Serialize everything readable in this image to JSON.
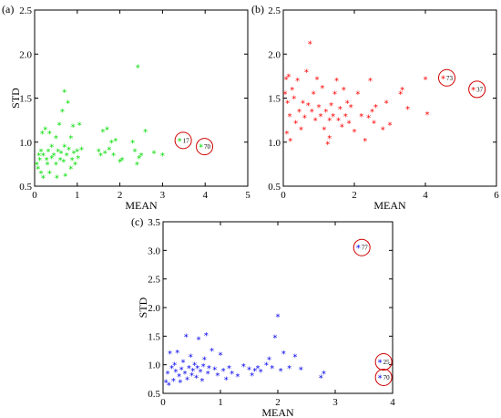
{
  "chart_data": [
    {
      "type": "scatter",
      "panel_label": "(a)",
      "xlabel": "MEAN",
      "ylabel": "STD",
      "xlim": [
        0,
        5
      ],
      "ylim": [
        0.5,
        2.5
      ],
      "xticks": [
        0,
        1,
        2,
        3,
        4,
        5
      ],
      "yticks": [
        0.5,
        1.0,
        1.5,
        2.0,
        2.5
      ],
      "ytick_labels": [
        "0.5",
        "1.0",
        "1.5",
        "2.0",
        "2.5"
      ],
      "color": "#00dd00",
      "marker": "*",
      "points": [
        [
          0.05,
          0.75
        ],
        [
          0.08,
          0.7
        ],
        [
          0.1,
          0.85
        ],
        [
          0.12,
          0.8
        ],
        [
          0.15,
          0.65
        ],
        [
          0.15,
          0.9
        ],
        [
          0.18,
          1.1
        ],
        [
          0.2,
          0.85
        ],
        [
          0.2,
          0.6
        ],
        [
          0.25,
          1.15
        ],
        [
          0.28,
          0.8
        ],
        [
          0.3,
          0.75
        ],
        [
          0.32,
          0.9
        ],
        [
          0.35,
          1.1
        ],
        [
          0.35,
          0.65
        ],
        [
          0.4,
          0.82
        ],
        [
          0.4,
          0.95
        ],
        [
          0.45,
          0.85
        ],
        [
          0.5,
          0.75
        ],
        [
          0.5,
          1.05
        ],
        [
          0.52,
          0.6
        ],
        [
          0.55,
          0.9
        ],
        [
          0.58,
          1.2
        ],
        [
          0.6,
          0.8
        ],
        [
          0.62,
          0.88
        ],
        [
          0.65,
          1.35
        ],
        [
          0.68,
          0.78
        ],
        [
          0.7,
          0.95
        ],
        [
          0.7,
          1.57
        ],
        [
          0.72,
          0.62
        ],
        [
          0.75,
          0.85
        ],
        [
          0.78,
          1.45
        ],
        [
          0.8,
          0.92
        ],
        [
          0.85,
          1.05
        ],
        [
          0.85,
          0.7
        ],
        [
          0.88,
          0.8
        ],
        [
          0.9,
          1.18
        ],
        [
          0.92,
          0.88
        ],
        [
          0.95,
          0.75
        ],
        [
          1.0,
          0.9
        ],
        [
          1.02,
          0.82
        ],
        [
          1.05,
          1.2
        ],
        [
          1.1,
          0.92
        ],
        [
          1.5,
          0.9
        ],
        [
          1.55,
          0.85
        ],
        [
          1.6,
          1.12
        ],
        [
          1.65,
          0.88
        ],
        [
          1.7,
          1.15
        ],
        [
          1.75,
          0.92
        ],
        [
          1.8,
          1.0
        ],
        [
          1.85,
          0.85
        ],
        [
          1.9,
          1.02
        ],
        [
          2.0,
          0.78
        ],
        [
          2.05,
          0.8
        ],
        [
          2.3,
          1.0
        ],
        [
          2.35,
          0.9
        ],
        [
          2.4,
          0.75
        ],
        [
          2.42,
          1.85
        ],
        [
          2.45,
          0.82
        ],
        [
          2.5,
          0.85
        ],
        [
          2.6,
          1.12
        ],
        [
          2.8,
          0.88
        ],
        [
          3.0,
          0.85
        ],
        [
          3.4,
          1.02
        ],
        [
          3.9,
          0.95
        ]
      ],
      "annotations": [
        {
          "label": "17",
          "x": 3.4,
          "y": 1.02
        },
        {
          "label": "70",
          "x": 3.9,
          "y": 0.95
        }
      ]
    },
    {
      "type": "scatter",
      "panel_label": "(b)",
      "xlabel": "MEAN",
      "ylabel": "",
      "xlim": [
        0,
        6
      ],
      "ylim": [
        0.5,
        2.5
      ],
      "xticks": [
        0,
        2,
        4,
        6
      ],
      "yticks": [
        0.5,
        1.0,
        1.5,
        2.0,
        2.5
      ],
      "ytick_labels": [
        "0.5",
        "1.0",
        "1.5",
        "2.0",
        "2.5"
      ],
      "color": "#ff0000",
      "marker": "*",
      "points": [
        [
          0.05,
          1.55
        ],
        [
          0.08,
          1.72
        ],
        [
          0.1,
          1.1
        ],
        [
          0.12,
          1.45
        ],
        [
          0.15,
          1.75
        ],
        [
          0.18,
          1.3
        ],
        [
          0.2,
          1.02
        ],
        [
          0.25,
          1.6
        ],
        [
          0.3,
          1.5
        ],
        [
          0.35,
          1.22
        ],
        [
          0.4,
          1.7
        ],
        [
          0.45,
          1.35
        ],
        [
          0.5,
          1.15
        ],
        [
          0.55,
          1.45
        ],
        [
          0.6,
          1.28
        ],
        [
          0.65,
          1.8
        ],
        [
          0.7,
          1.42
        ],
        [
          0.75,
          2.12
        ],
        [
          0.8,
          1.35
        ],
        [
          0.85,
          1.55
        ],
        [
          0.9,
          1.25
        ],
        [
          0.95,
          1.72
        ],
        [
          1.0,
          1.4
        ],
        [
          1.05,
          1.3
        ],
        [
          1.1,
          1.62
        ],
        [
          1.15,
          1.15
        ],
        [
          1.2,
          1.35
        ],
        [
          1.25,
          0.98
        ],
        [
          1.3,
          1.25
        ],
        [
          1.3,
          1.05
        ],
        [
          1.35,
          1.42
        ],
        [
          1.4,
          1.3
        ],
        [
          1.45,
          1.55
        ],
        [
          1.5,
          1.7
        ],
        [
          1.55,
          1.25
        ],
        [
          1.6,
          1.38
        ],
        [
          1.65,
          1.18
        ],
        [
          1.7,
          1.6
        ],
        [
          1.75,
          1.3
        ],
        [
          1.8,
          1.45
        ],
        [
          1.85,
          1.22
        ],
        [
          1.9,
          1.4
        ],
        [
          2.0,
          1.12
        ],
        [
          2.1,
          1.55
        ],
        [
          2.2,
          1.3
        ],
        [
          2.3,
          1.02
        ],
        [
          2.4,
          1.28
        ],
        [
          2.45,
          1.7
        ],
        [
          2.5,
          1.35
        ],
        [
          2.55,
          1.22
        ],
        [
          2.6,
          1.4
        ],
        [
          2.8,
          1.15
        ],
        [
          2.9,
          1.45
        ],
        [
          3.0,
          1.2
        ],
        [
          3.3,
          1.55
        ],
        [
          3.35,
          1.6
        ],
        [
          3.5,
          1.38
        ],
        [
          4.0,
          1.72
        ],
        [
          4.05,
          1.32
        ],
        [
          4.5,
          1.73
        ],
        [
          5.35,
          1.6
        ]
      ],
      "annotations": [
        {
          "label": "73",
          "x": 4.5,
          "y": 1.73
        },
        {
          "label": "37",
          "x": 5.35,
          "y": 1.6
        }
      ]
    },
    {
      "type": "scatter",
      "panel_label": "(c)",
      "xlabel": "MEAN",
      "ylabel": "STD",
      "xlim": [
        0,
        4
      ],
      "ylim": [
        0.5,
        3.5
      ],
      "xticks": [
        0,
        1,
        2,
        3,
        4
      ],
      "yticks": [
        0.5,
        1.0,
        1.5,
        2.0,
        2.5,
        3.0,
        3.5
      ],
      "ytick_labels": [
        "0.5",
        "1.0",
        "1.5",
        "2.0",
        "2.5",
        "3.0",
        "3.5"
      ],
      "color": "#0000ee",
      "marker": "*",
      "points": [
        [
          0.05,
          0.7
        ],
        [
          0.08,
          0.85
        ],
        [
          0.1,
          0.65
        ],
        [
          0.12,
          1.2
        ],
        [
          0.15,
          0.95
        ],
        [
          0.18,
          0.72
        ],
        [
          0.2,
          1.0
        ],
        [
          0.22,
          0.88
        ],
        [
          0.25,
          1.22
        ],
        [
          0.28,
          0.8
        ],
        [
          0.3,
          0.7
        ],
        [
          0.32,
          0.92
        ],
        [
          0.35,
          1.05
        ],
        [
          0.38,
          0.85
        ],
        [
          0.4,
          1.5
        ],
        [
          0.42,
          0.75
        ],
        [
          0.45,
          0.95
        ],
        [
          0.48,
          1.15
        ],
        [
          0.5,
          0.82
        ],
        [
          0.52,
          0.9
        ],
        [
          0.55,
          1.0
        ],
        [
          0.58,
          0.78
        ],
        [
          0.6,
          0.95
        ],
        [
          0.62,
          1.45
        ],
        [
          0.65,
          0.88
        ],
        [
          0.68,
          0.72
        ],
        [
          0.7,
          0.98
        ],
        [
          0.72,
          1.1
        ],
        [
          0.75,
          1.52
        ],
        [
          0.78,
          0.85
        ],
        [
          0.8,
          0.95
        ],
        [
          0.85,
          1.25
        ],
        [
          0.9,
          0.92
        ],
        [
          0.95,
          0.82
        ],
        [
          1.0,
          1.18
        ],
        [
          1.05,
          0.9
        ],
        [
          1.1,
          0.75
        ],
        [
          1.15,
          0.95
        ],
        [
          1.2,
          0.85
        ],
        [
          1.3,
          0.8
        ],
        [
          1.4,
          0.98
        ],
        [
          1.5,
          0.92
        ],
        [
          1.55,
          0.82
        ],
        [
          1.6,
          0.9
        ],
        [
          1.65,
          0.95
        ],
        [
          1.7,
          0.88
        ],
        [
          1.8,
          1.0
        ],
        [
          1.85,
          1.1
        ],
        [
          1.9,
          0.95
        ],
        [
          1.95,
          1.48
        ],
        [
          2.0,
          1.85
        ],
        [
          2.05,
          0.9
        ],
        [
          2.1,
          1.2
        ],
        [
          2.2,
          0.95
        ],
        [
          2.3,
          1.15
        ],
        [
          2.4,
          0.92
        ],
        [
          2.75,
          0.78
        ],
        [
          2.8,
          0.85
        ],
        [
          3.4,
          3.05
        ],
        [
          3.78,
          1.05
        ],
        [
          3.78,
          0.78
        ]
      ],
      "annotations": [
        {
          "label": "77",
          "x": 3.4,
          "y": 3.05
        },
        {
          "label": "25",
          "x": 3.78,
          "y": 1.05
        },
        {
          "label": "70",
          "x": 3.78,
          "y": 0.78
        }
      ]
    }
  ]
}
